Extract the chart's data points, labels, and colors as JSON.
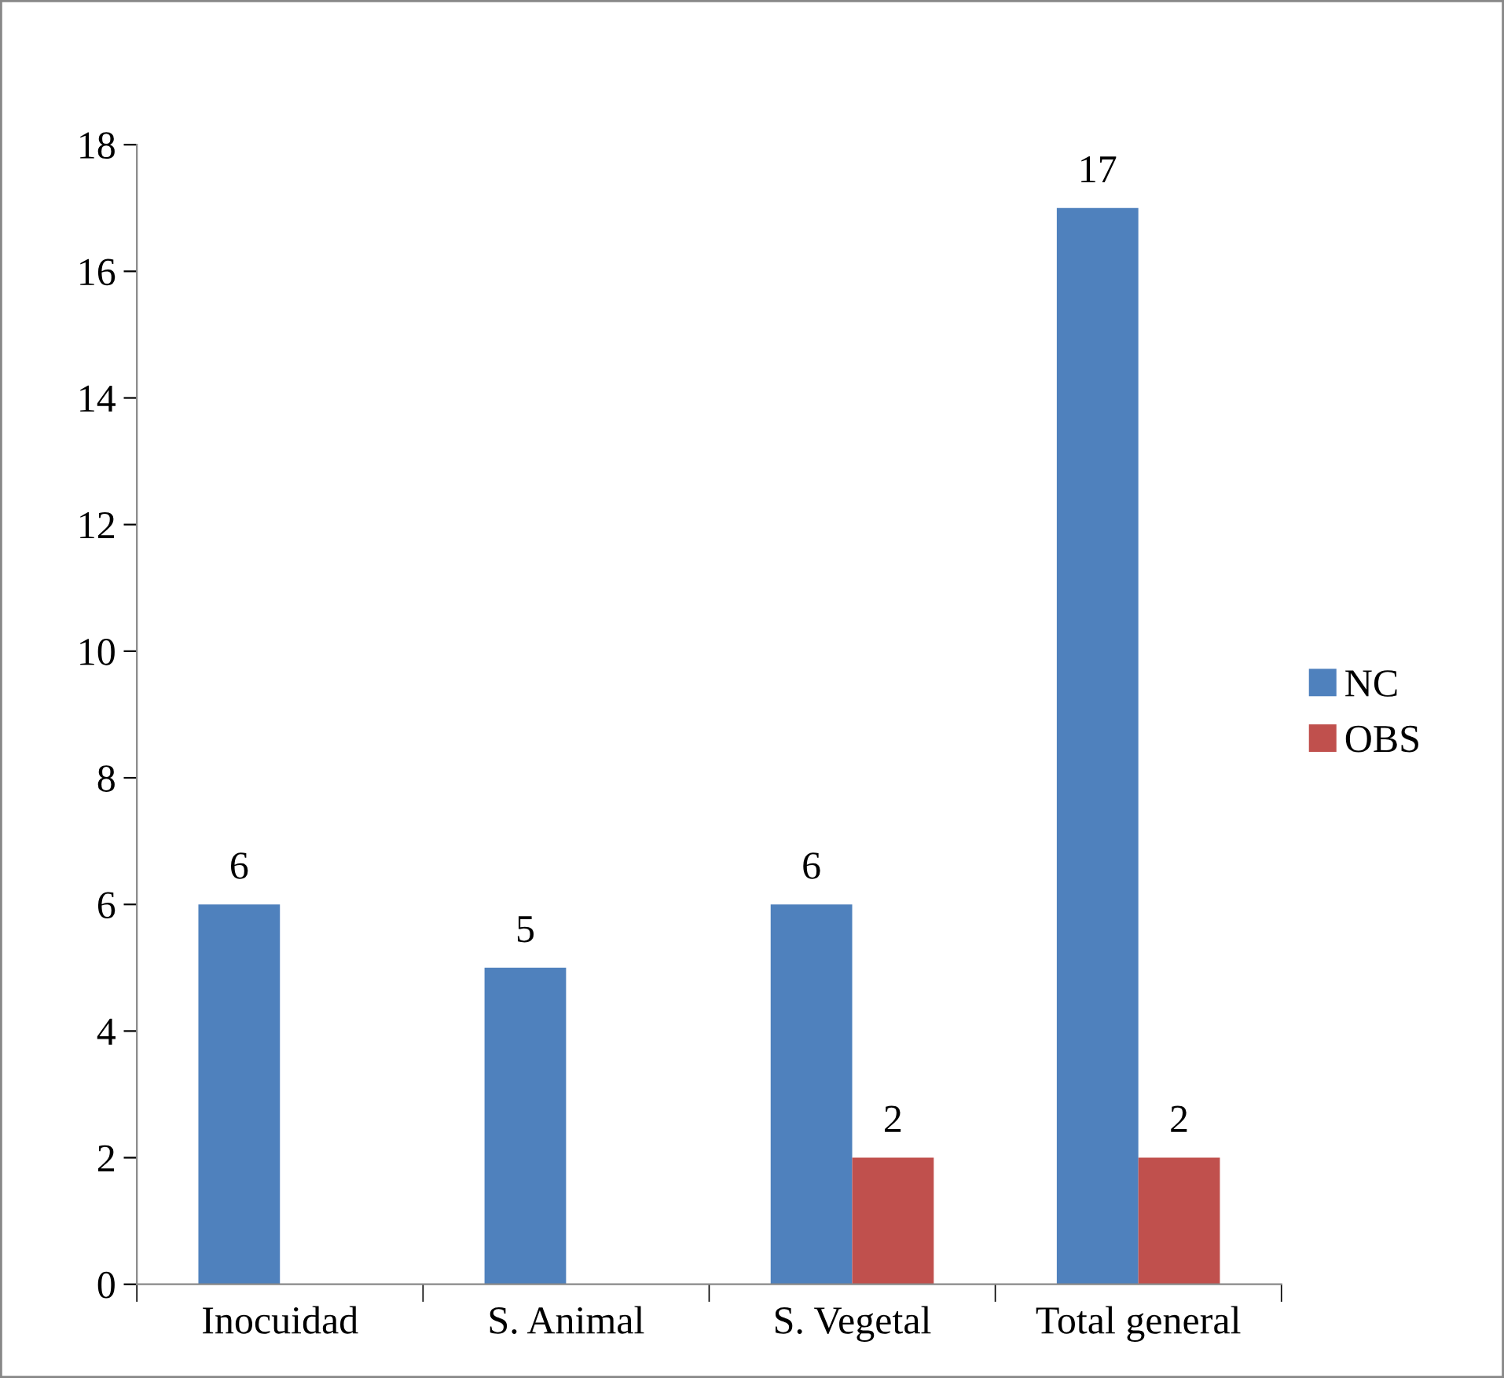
{
  "chart_data": {
    "type": "bar",
    "categories": [
      "Inocuidad",
      "S. Animal",
      "S. Vegetal",
      "Total general"
    ],
    "series": [
      {
        "name": "NC",
        "color": "#4f81bd",
        "values": [
          6,
          5,
          6,
          17
        ]
      },
      {
        "name": "OBS",
        "color": "#c0504d",
        "values": [
          null,
          null,
          2,
          2
        ]
      }
    ],
    "ylim": [
      0,
      18
    ],
    "yticks": [
      0,
      2,
      4,
      6,
      8,
      10,
      12,
      14,
      16,
      18
    ],
    "data_labels": true,
    "grid": false,
    "legend": "right"
  }
}
